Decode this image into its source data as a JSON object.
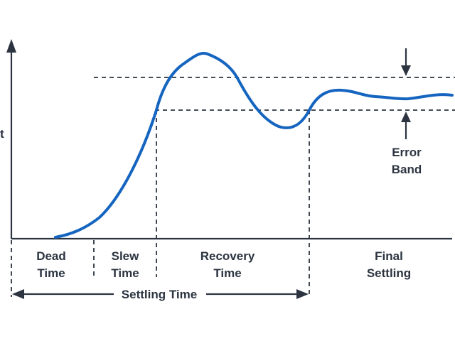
{
  "colors": {
    "curve": "#1565c0",
    "lines": "#2b3440",
    "background": "#ffffff"
  },
  "y_axis_label_fragment": "t",
  "phases": {
    "dead_time": [
      "Dead",
      "Time"
    ],
    "slew_time": [
      "Slew",
      "Time"
    ],
    "recovery_time": [
      "Recovery",
      "Time"
    ],
    "final_settling": [
      "Final",
      "Settling"
    ]
  },
  "settling_time_label": "Settling Time",
  "error_band_label": [
    "Error",
    "Band"
  ],
  "icons": {
    "axis_arrow": "arrowhead-up-icon",
    "settling_arrows": "double-arrow-icon",
    "error_band_arrows": "inward-arrows-icon"
  }
}
